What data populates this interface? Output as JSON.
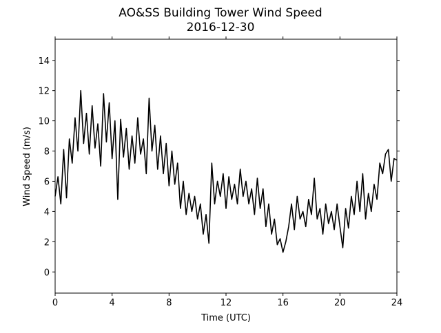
{
  "chart_data": {
    "type": "line",
    "title": "AO&SS Building Tower Wind Speed",
    "subtitle": "2016-12-30",
    "x_label": "Time (UTC)",
    "y_label": "Wind Speed (m/s)",
    "xlim": [
      0,
      24
    ],
    "xticks": [
      0,
      4,
      8,
      12,
      16,
      20,
      24
    ],
    "ylim": [
      -1.4,
      15.4
    ],
    "yticks": [
      0,
      2,
      4,
      6,
      8,
      10,
      12,
      14
    ],
    "series": [
      {
        "name": "Wind Speed",
        "color": "#000000",
        "x": [
          0.0,
          0.2,
          0.4,
          0.6,
          0.8,
          1.0,
          1.2,
          1.4,
          1.6,
          1.8,
          2.0,
          2.2,
          2.4,
          2.6,
          2.8,
          3.0,
          3.2,
          3.4,
          3.6,
          3.8,
          4.0,
          4.2,
          4.4,
          4.6,
          4.8,
          5.0,
          5.2,
          5.4,
          5.6,
          5.8,
          6.0,
          6.2,
          6.4,
          6.6,
          6.8,
          7.0,
          7.2,
          7.4,
          7.6,
          7.8,
          8.0,
          8.2,
          8.4,
          8.6,
          8.8,
          9.0,
          9.2,
          9.4,
          9.6,
          9.8,
          10.0,
          10.2,
          10.4,
          10.6,
          10.8,
          11.0,
          11.2,
          11.4,
          11.6,
          11.8,
          12.0,
          12.2,
          12.4,
          12.6,
          12.8,
          13.0,
          13.2,
          13.4,
          13.6,
          13.8,
          14.0,
          14.2,
          14.4,
          14.6,
          14.8,
          15.0,
          15.2,
          15.4,
          15.6,
          15.8,
          16.0,
          16.2,
          16.4,
          16.6,
          16.8,
          17.0,
          17.2,
          17.4,
          17.6,
          17.8,
          18.0,
          18.2,
          18.4,
          18.6,
          18.8,
          19.0,
          19.2,
          19.4,
          19.6,
          19.8,
          20.0,
          20.2,
          20.4,
          20.6,
          20.8,
          21.0,
          21.2,
          21.4,
          21.6,
          21.8,
          22.0,
          22.2,
          22.4,
          22.6,
          22.8,
          23.0,
          23.2,
          23.4,
          23.6,
          23.8,
          24.0
        ],
        "values": [
          5.0,
          6.3,
          4.5,
          8.1,
          4.9,
          8.8,
          7.2,
          10.2,
          8.0,
          12.0,
          8.5,
          10.5,
          7.8,
          11.0,
          8.2,
          9.8,
          7.0,
          11.8,
          8.6,
          11.2,
          7.5,
          10.0,
          4.8,
          10.1,
          7.6,
          9.5,
          6.8,
          9.0,
          7.2,
          10.2,
          7.8,
          8.8,
          6.5,
          11.5,
          8.0,
          9.7,
          6.8,
          9.0,
          6.5,
          8.5,
          5.7,
          8.0,
          5.8,
          7.2,
          4.2,
          6.0,
          3.8,
          5.2,
          4.0,
          5.0,
          3.5,
          4.5,
          2.5,
          3.8,
          1.9,
          7.2,
          4.5,
          6.0,
          5.0,
          6.5,
          4.2,
          6.3,
          4.8,
          5.8,
          4.5,
          6.8,
          5.0,
          6.0,
          4.5,
          5.5,
          3.8,
          6.2,
          4.2,
          5.5,
          3.0,
          4.5,
          2.5,
          3.5,
          1.8,
          2.2,
          1.3,
          2.0,
          3.0,
          4.5,
          2.8,
          5.0,
          3.5,
          4.0,
          3.0,
          4.8,
          3.8,
          6.2,
          3.5,
          4.2,
          2.5,
          4.5,
          3.2,
          4.0,
          2.8,
          4.5,
          3.0,
          1.6,
          4.2,
          2.9,
          5.0,
          3.8,
          6.0,
          4.0,
          6.5,
          3.5,
          5.2,
          4.0,
          5.8,
          4.8,
          7.2,
          6.5,
          7.8,
          8.1,
          6.0,
          7.5,
          7.4
        ]
      }
    ]
  }
}
